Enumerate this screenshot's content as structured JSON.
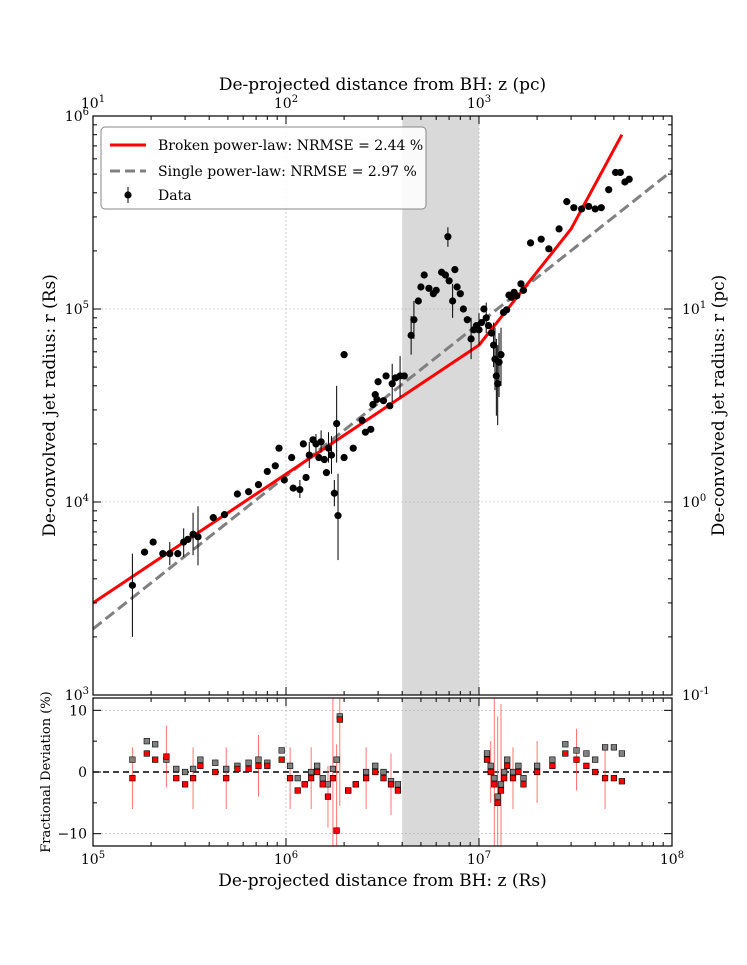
{
  "chart_data": [
    {
      "type": "scatter",
      "panel": "main",
      "title": "",
      "xlabel": "De-projected distance from BH: z (R_s)",
      "xlabel_display": "De-projected distance from BH: z (Rs)",
      "ylabel": "De-convolved jet radius: r (R_s)",
      "ylabel_display": "De-convolved jet radius: r (Rs)",
      "secondary_xlabel": "De-projected distance from BH: z (pc)",
      "secondary_ylabel": "De-convolved jet radius: r (pc)",
      "xscale": "log",
      "yscale": "log",
      "xlim": [
        100000,
        100000000
      ],
      "ylim": [
        1000,
        1000000
      ],
      "x_ticks": [
        "10^5",
        "10^6",
        "10^7",
        "10^8"
      ],
      "y_ticks": [
        "10^3",
        "10^4",
        "10^5",
        "10^6"
      ],
      "top_ticks": [
        "10^1",
        "10^2",
        "10^3"
      ],
      "right_ticks": [
        "10^-1",
        "10^0",
        "10^1"
      ],
      "grid": true,
      "legend_position": "top-left",
      "shaded_region": [
        4000000,
        10000000
      ],
      "series": [
        {
          "name": "Broken power-law: NRMSE = 2.44 %",
          "style": "solid",
          "color": "#ff0000",
          "x": [
            100000,
            10000000,
            30000000,
            55000000
          ],
          "y": [
            3000,
            65000,
            260000,
            800000
          ]
        },
        {
          "name": "Single power-law: NRMSE = 2.97 %",
          "style": "dashed",
          "color": "#808080",
          "x": [
            100000,
            100000000
          ],
          "y": [
            2200,
            520000
          ]
        },
        {
          "name": "Data",
          "style": "points",
          "color": "#000000",
          "points": [
            [
              160000,
              3700,
              2000,
              5400
            ],
            [
              185000,
              5500,
              null,
              null
            ],
            [
              205000,
              6200,
              null,
              null
            ],
            [
              230000,
              5400,
              null,
              null
            ],
            [
              250000,
              5400,
              4700,
              6200
            ],
            [
              275000,
              5400,
              null,
              null
            ],
            [
              295000,
              6200,
              5200,
              7300
            ],
            [
              310000,
              6400,
              null,
              null
            ],
            [
              330000,
              6800,
              5300,
              8800
            ],
            [
              350000,
              6600,
              4700,
              9500
            ],
            [
              420000,
              8300,
              null,
              null
            ],
            [
              480000,
              8600,
              null,
              null
            ],
            [
              560000,
              11000,
              null,
              null
            ],
            [
              640000,
              11300,
              null,
              null
            ],
            [
              720000,
              12300,
              null,
              null
            ],
            [
              800000,
              14400,
              null,
              null
            ],
            [
              880000,
              15400,
              null,
              null
            ],
            [
              920000,
              19000,
              null,
              null
            ],
            [
              980000,
              13000,
              null,
              null
            ],
            [
              1070000,
              17000,
              null,
              null
            ],
            [
              1090000,
              11800,
              null,
              null
            ],
            [
              1180000,
              11600,
              10500,
              13000
            ],
            [
              1230000,
              20000,
              null,
              null
            ],
            [
              1270000,
              13400,
              null,
              null
            ],
            [
              1320000,
              17500,
              15000,
              20500
            ],
            [
              1380000,
              21000,
              null,
              null
            ],
            [
              1430000,
              20000,
              18000,
              22500
            ],
            [
              1480000,
              17000,
              null,
              null
            ],
            [
              1520000,
              20500,
              18000,
              23500
            ],
            [
              1580000,
              16600,
              null,
              null
            ],
            [
              1620000,
              14200,
              null,
              null
            ],
            [
              1660000,
              19000,
              16000,
              23000
            ],
            [
              1720000,
              17500,
              14000,
              22000
            ],
            [
              1780000,
              11100,
              9500,
              13000
            ],
            [
              1830000,
              25500,
              16000,
              40000
            ],
            [
              1860000,
              8500,
              5000,
              14000
            ],
            [
              2000000,
              58000,
              null,
              null
            ],
            [
              2000000,
              17000,
              null,
              null
            ],
            [
              2230000,
              19000,
              null,
              null
            ],
            [
              2480000,
              26500,
              null,
              null
            ],
            [
              2580000,
              23000,
              null,
              null
            ],
            [
              2750000,
              23800,
              null,
              null
            ],
            [
              2820000,
              32000,
              null,
              null
            ],
            [
              2900000,
              36000,
              null,
              null
            ],
            [
              2960000,
              34000,
              null,
              null
            ],
            [
              3000000,
              42000,
              null,
              null
            ],
            [
              3200000,
              33500,
              null,
              null
            ],
            [
              3300000,
              45000,
              null,
              null
            ],
            [
              3450000,
              31500,
              null,
              null
            ],
            [
              3550000,
              41000,
              33000,
              52000
            ],
            [
              3700000,
              44000,
              null,
              null
            ],
            [
              3900000,
              45000,
              35000,
              57000
            ],
            [
              4100000,
              45000,
              null,
              null
            ],
            [
              4450000,
              73000,
              58000,
              92000
            ],
            [
              4600000,
              88000,
              70000,
              110000
            ],
            [
              4850000,
              110000,
              null,
              null
            ],
            [
              5000000,
              130000,
              null,
              null
            ],
            [
              5200000,
              150000,
              null,
              null
            ],
            [
              5500000,
              128000,
              null,
              null
            ],
            [
              5800000,
              120000,
              null,
              null
            ],
            [
              6000000,
              125000,
              null,
              null
            ],
            [
              6400000,
              155000,
              null,
              null
            ],
            [
              6700000,
              150000,
              null,
              null
            ],
            [
              6900000,
              237000,
              210000,
              265000
            ],
            [
              7000000,
              140000,
              null,
              null
            ],
            [
              7300000,
              110000,
              90000,
              135000
            ],
            [
              7500000,
              160000,
              null,
              null
            ],
            [
              7700000,
              130000,
              null,
              null
            ],
            [
              8000000,
              120000,
              null,
              null
            ],
            [
              8300000,
              100000,
              null,
              null
            ],
            [
              8700000,
              88000,
              null,
              null
            ],
            [
              9100000,
              70000,
              55000,
              90000
            ],
            [
              9400000,
              78000,
              null,
              null
            ],
            [
              9700000,
              82000,
              null,
              null
            ],
            [
              10000000,
              78000,
              65000,
              95000
            ],
            [
              10300000,
              85000,
              null,
              null
            ],
            [
              10600000,
              100000,
              null,
              null
            ],
            [
              10900000,
              90000,
              75000,
              108000
            ],
            [
              11200000,
              82000,
              null,
              null
            ],
            [
              11600000,
              75000,
              null,
              null
            ],
            [
              11900000,
              65000,
              50000,
              85000
            ],
            [
              12100000,
              55000,
              38000,
              80000
            ],
            [
              12300000,
              45000,
              28000,
              70000
            ],
            [
              12500000,
              41000,
              25000,
              65000
            ],
            [
              12700000,
              53000,
              35000,
              75000
            ],
            [
              13000000,
              58000,
              40000,
              80000
            ],
            [
              13400000,
              96000,
              null,
              null
            ],
            [
              13900000,
              99000,
              null,
              null
            ],
            [
              14300000,
              118000,
              null,
              null
            ],
            [
              14700000,
              115000,
              null,
              null
            ],
            [
              15200000,
              122000,
              null,
              null
            ],
            [
              15700000,
              117000,
              null,
              null
            ],
            [
              16500000,
              135000,
              null,
              null
            ],
            [
              17000000,
              125000,
              null,
              null
            ],
            [
              18500000,
              220000,
              null,
              null
            ],
            [
              21000000,
              230000,
              null,
              null
            ],
            [
              23000000,
              205000,
              null,
              null
            ],
            [
              26000000,
              260000,
              null,
              null
            ],
            [
              28500000,
              360000,
              null,
              null
            ],
            [
              31000000,
              335000,
              null,
              null
            ],
            [
              34000000,
              330000,
              null,
              null
            ],
            [
              37000000,
              340000,
              null,
              null
            ],
            [
              40000000,
              330000,
              null,
              null
            ],
            [
              43000000,
              335000,
              null,
              null
            ],
            [
              47000000,
              415000,
              null,
              null
            ],
            [
              51000000,
              510000,
              null,
              null
            ],
            [
              54000000,
              510000,
              null,
              null
            ],
            [
              57000000,
              455000,
              null,
              null
            ],
            [
              60000000,
              470000,
              null,
              null
            ]
          ]
        }
      ],
      "legend": [
        "Broken power-law: NRMSE = 2.44 %",
        "Single power-law: NRMSE = 2.97 %",
        "Data"
      ]
    },
    {
      "type": "scatter",
      "panel": "residuals",
      "xlabel": "De-projected distance from BH: z (R_s)",
      "ylabel": "Fractional Deviation (%)",
      "xscale": "log",
      "xlim": [
        100000,
        100000000
      ],
      "ylim": [
        -12,
        12
      ],
      "y_ticks": [
        "10",
        "0",
        "-10"
      ],
      "reference_line": 0,
      "series": [
        {
          "name": "single",
          "color": "#808080",
          "x": [
            160000,
            190000,
            210000,
            240000,
            270000,
            300000,
            330000,
            360000,
            430000,
            490000,
            560000,
            640000,
            720000,
            800000,
            950000,
            1050000,
            1150000,
            1250000,
            1350000,
            1450000,
            1550000,
            1650000,
            1750000,
            1830000,
            1900000,
            2100000,
            2300000,
            2600000,
            2900000,
            3200000,
            3500000,
            3800000,
            11000000,
            11500000,
            12000000,
            12500000,
            13000000,
            13500000,
            14000000,
            15000000,
            16000000,
            17000000,
            20000000,
            24000000,
            28000000,
            32000000,
            36000000,
            40000000,
            45000000,
            50000000,
            55000000
          ],
          "y": [
            2,
            5,
            4.5,
            2,
            0.5,
            0,
            0.5,
            2,
            1.5,
            0.5,
            1,
            1.5,
            2,
            1.5,
            3.5,
            1,
            -1,
            -2,
            0,
            1,
            -1,
            -2,
            0.5,
            2,
            9,
            -3,
            -2,
            0,
            1,
            0,
            -1.5,
            -2,
            3,
            1,
            -1,
            -4,
            -2,
            0,
            2,
            0,
            1,
            -1,
            1,
            2,
            4.5,
            3.5,
            3,
            2,
            4,
            4,
            3
          ]
        },
        {
          "name": "broken",
          "color": "#ff0000",
          "x": [
            160000,
            190000,
            210000,
            240000,
            270000,
            300000,
            330000,
            360000,
            430000,
            490000,
            560000,
            640000,
            720000,
            800000,
            950000,
            1050000,
            1150000,
            1250000,
            1350000,
            1450000,
            1550000,
            1650000,
            1750000,
            1830000,
            1900000,
            2100000,
            2300000,
            2600000,
            2900000,
            3200000,
            3500000,
            3800000,
            11000000,
            11500000,
            12000000,
            12500000,
            13000000,
            13500000,
            14000000,
            15000000,
            16000000,
            17000000,
            20000000,
            24000000,
            28000000,
            32000000,
            36000000,
            40000000,
            45000000,
            50000000,
            55000000
          ],
          "y": [
            -1,
            3,
            2,
            2.5,
            -1,
            -2,
            -1,
            1,
            0,
            -1,
            0.5,
            0.5,
            1,
            1,
            2,
            -1,
            -3,
            -2,
            -1,
            0,
            -2,
            -4,
            -1,
            -9.5,
            8.5,
            -3,
            -2,
            -1,
            0,
            -1,
            -2,
            -3,
            2,
            0,
            -2,
            -5,
            -3,
            -1,
            1,
            -1,
            0,
            -2,
            0,
            1,
            3,
            2,
            1,
            0,
            -1,
            -1,
            -1.5
          ]
        }
      ]
    }
  ]
}
